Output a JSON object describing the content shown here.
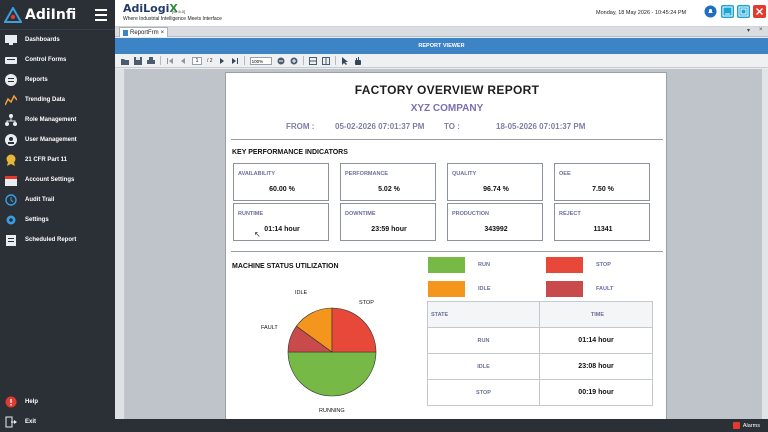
{
  "app": {
    "logo_text": "AdiInfi",
    "title_prefix": "AdiLogi",
    "title_x": "X",
    "version": "[v2.6.0]",
    "tagline": "Where Industrial Intelligence Meets Interface",
    "clock": "Monday, 18 May 2026 - 10:45:24 PM"
  },
  "sidebar": {
    "items": [
      {
        "label": "Dashboards",
        "icon": "monitor-icon"
      },
      {
        "label": "Control Forms",
        "icon": "keyboard-icon"
      },
      {
        "label": "Reports",
        "icon": "report-icon"
      },
      {
        "label": "Trending Data",
        "icon": "trend-icon"
      },
      {
        "label": "Role Management",
        "icon": "hierarchy-icon"
      },
      {
        "label": "User Management",
        "icon": "users-icon"
      },
      {
        "label": "21 CFR Part 11",
        "icon": "badge-icon"
      },
      {
        "label": "Account Settings",
        "icon": "calendar-icon"
      },
      {
        "label": "Audit Trail",
        "icon": "history-icon"
      },
      {
        "label": "Settings",
        "icon": "gear-icon"
      },
      {
        "label": "Scheduled Report",
        "icon": "clipboard-icon"
      }
    ],
    "bottom": [
      {
        "label": "Help",
        "icon": "help-icon"
      },
      {
        "label": "Exit",
        "icon": "exit-icon"
      }
    ]
  },
  "tabs": {
    "doc_tab": "ReportFrm",
    "close": "×",
    "ctrl_arrow": "▾",
    "ctrl_close": "×"
  },
  "viewer": {
    "header": "REPORT VIEWER",
    "page_current": "1",
    "page_total": "/ 2",
    "zoom": "100%"
  },
  "report": {
    "title": "FACTORY OVERVIEW REPORT",
    "company": "XYZ COMPANY",
    "from_label": "FROM :",
    "from_value": "05-02-2026 07:01:37 PM",
    "to_label": "TO :",
    "to_value": "18-05-2026 07:01:37 PM",
    "kpi_title": "KEY PERFORMANCE INDICATORS",
    "kpis": [
      {
        "label": "AVAILABILITY",
        "value": "60.00 %"
      },
      {
        "label": "PERFORMANCE",
        "value": "5.02 %"
      },
      {
        "label": "QUALITY",
        "value": "96.74 %"
      },
      {
        "label": "OEE",
        "value": "7.50 %"
      },
      {
        "label": "RUNTIME",
        "value": "01:14 hour"
      },
      {
        "label": "DOWNTIME",
        "value": "23:59 hour"
      },
      {
        "label": "PRODUCTION",
        "value": "343992"
      },
      {
        "label": "REJECT",
        "value": "11341"
      }
    ],
    "status_title": "MACHINE STATUS UTILIZATION",
    "legend": [
      {
        "label": "RUN",
        "color": "#76b947"
      },
      {
        "label": "STOP",
        "color": "#e8483a"
      },
      {
        "label": "IDLE",
        "color": "#f4951d"
      },
      {
        "label": "FAULT",
        "color": "#c94a4a"
      }
    ],
    "table": {
      "headers": [
        "STATE",
        "TIME"
      ],
      "rows": [
        {
          "state": "RUN",
          "time": "01:14 hour"
        },
        {
          "state": "IDLE",
          "time": "23:08 hour"
        },
        {
          "state": "STOP",
          "time": "00:19 hour"
        }
      ]
    }
  },
  "chart_data": {
    "type": "pie",
    "categories": [
      "RUNNING",
      "FAULT",
      "IDLE",
      "STOP"
    ],
    "values": [
      50,
      10,
      15,
      25
    ],
    "colors": [
      "#76b947",
      "#c94a4a",
      "#f4951d",
      "#e8483a"
    ]
  },
  "status": {
    "alarms": "Alarms"
  }
}
